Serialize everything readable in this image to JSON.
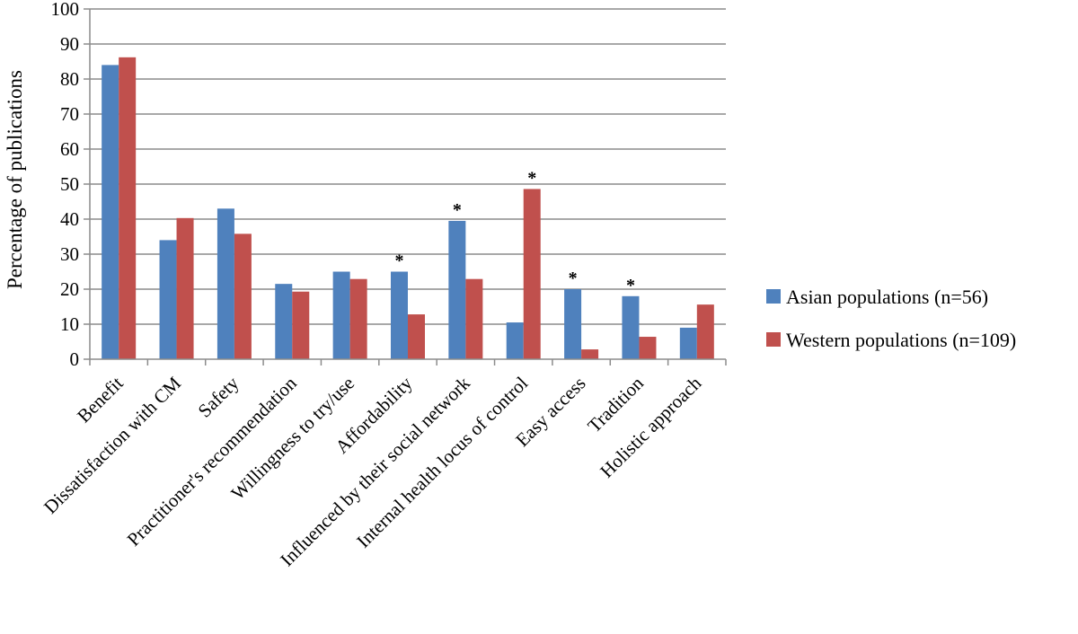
{
  "chart_data": {
    "type": "bar",
    "title": "",
    "xlabel": "",
    "ylabel": "Percentage of publications",
    "ylim": [
      0,
      100
    ],
    "yticks": [
      0,
      10,
      20,
      30,
      40,
      50,
      60,
      70,
      80,
      90,
      100
    ],
    "grid": true,
    "legend_position": "right",
    "categories": [
      "Benefit",
      "Dissatisfaction with CM",
      "Safety",
      "Practitioner's recommendation",
      "Willingness to try/use",
      "Affordability",
      "Influenced by their social network",
      "Internal health locus of control",
      "Easy access",
      "Tradition",
      "Holistic approach"
    ],
    "series": [
      {
        "name": "Asian populations (n=56)",
        "color": "#4f81bd",
        "values": [
          84,
          34,
          43,
          21.5,
          25,
          25,
          39.5,
          10.5,
          20,
          18,
          9
        ]
      },
      {
        "name": "Western populations (n=109)",
        "color": "#c0504d",
        "values": [
          86.2,
          40.3,
          35.8,
          19.3,
          22.9,
          12.8,
          22.9,
          48.6,
          2.8,
          6.4,
          15.6
        ]
      }
    ],
    "annotations": [
      {
        "category": "Affordability",
        "series": 0,
        "text": "*"
      },
      {
        "category": "Influenced by their social network",
        "series": 0,
        "text": "*"
      },
      {
        "category": "Internal health locus of control",
        "series": 1,
        "text": "*"
      },
      {
        "category": "Easy access",
        "series": 0,
        "text": "*"
      },
      {
        "category": "Tradition",
        "series": 0,
        "text": "*"
      }
    ]
  }
}
